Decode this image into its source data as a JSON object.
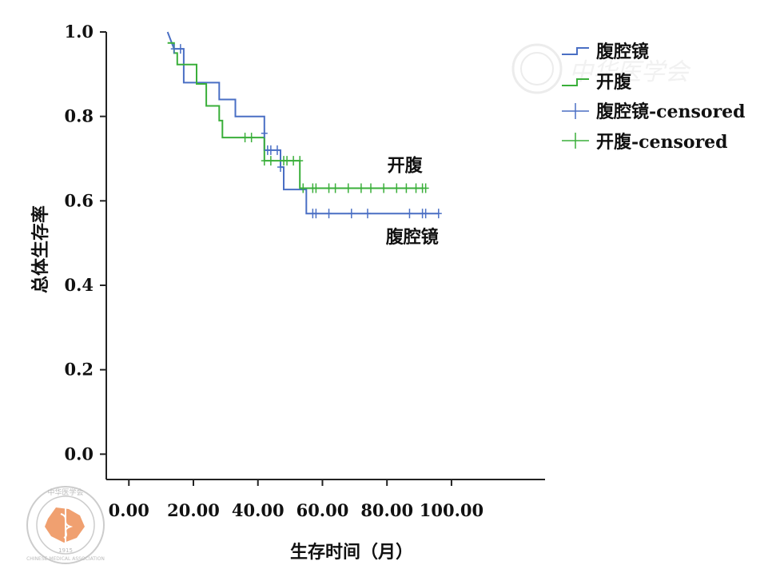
{
  "chart_data": {
    "type": "line",
    "step": true,
    "xlabel": "生存时间（月）",
    "ylabel": "总体生存率",
    "xlim": [
      -7,
      129
    ],
    "ylim": [
      -0.06,
      1.0
    ],
    "x_ticks": [
      "0.00",
      "20.00",
      "40.00",
      "60.00",
      "80.00",
      "100.00"
    ],
    "y_ticks": [
      "0.0",
      "0.2",
      "0.4",
      "0.6",
      "0.8",
      "1.0"
    ],
    "legend_position": "top-right",
    "legend": [
      "腹腔镜",
      "开腹",
      "腹腔镜-censored",
      "开腹-censored"
    ],
    "annotations": [
      {
        "text": "开腹",
        "x": 91,
        "y": 0.67
      },
      {
        "text": "腹腔镜",
        "x": 96,
        "y": 0.5
      }
    ],
    "series": [
      {
        "name": "腹腔镜",
        "color": "#4a6fc4",
        "steps": [
          [
            12,
            1.0
          ],
          [
            14,
            0.96
          ],
          [
            17,
            0.96
          ],
          [
            17,
            0.88
          ],
          [
            28,
            0.88
          ],
          [
            28,
            0.84
          ],
          [
            33,
            0.84
          ],
          [
            33,
            0.8
          ],
          [
            42,
            0.8
          ],
          [
            42,
            0.72
          ],
          [
            47,
            0.72
          ],
          [
            47,
            0.68
          ],
          [
            48,
            0.68
          ],
          [
            48,
            0.627
          ],
          [
            55,
            0.627
          ],
          [
            55,
            0.57
          ],
          [
            96,
            0.57
          ]
        ],
        "censored_x": [
          14,
          16,
          42,
          43,
          44,
          46,
          47,
          57,
          58,
          62,
          69,
          74,
          87,
          91,
          92,
          96
        ],
        "censored_y": [
          0.96,
          0.96,
          0.76,
          0.72,
          0.72,
          0.72,
          0.68,
          0.57,
          0.57,
          0.57,
          0.57,
          0.57,
          0.57,
          0.57,
          0.57,
          0.57
        ]
      },
      {
        "name": "开腹",
        "color": "#3aaf3a",
        "steps": [
          [
            12,
            0.974
          ],
          [
            14,
            0.974
          ],
          [
            14,
            0.95
          ],
          [
            15,
            0.95
          ],
          [
            15,
            0.923
          ],
          [
            21,
            0.923
          ],
          [
            21,
            0.877
          ],
          [
            24,
            0.877
          ],
          [
            24,
            0.825
          ],
          [
            28,
            0.825
          ],
          [
            28,
            0.79
          ],
          [
            29,
            0.79
          ],
          [
            29,
            0.75
          ],
          [
            42,
            0.75
          ],
          [
            42,
            0.695
          ],
          [
            53,
            0.695
          ],
          [
            53,
            0.63
          ],
          [
            91,
            0.63
          ]
        ],
        "censored_x": [
          36,
          38,
          42,
          44,
          48,
          49,
          51,
          53,
          54,
          57,
          58,
          62,
          64,
          68,
          72,
          75,
          79,
          83,
          86,
          89,
          91,
          92
        ],
        "censored_y": [
          0.75,
          0.75,
          0.695,
          0.695,
          0.695,
          0.695,
          0.695,
          0.695,
          0.63,
          0.63,
          0.63,
          0.63,
          0.63,
          0.63,
          0.63,
          0.63,
          0.63,
          0.63,
          0.63,
          0.63,
          0.63,
          0.63
        ]
      }
    ]
  },
  "colors": {
    "laparoscopic": "#4a6fc4",
    "open": "#3aaf3a",
    "axis": "#222222",
    "watermark": "#dddddd",
    "logo_map": "#f0a070"
  },
  "watermark": {
    "seal_text": "中华医学会",
    "seal_ring_text": "CHINESE MEDICAL ASSOCIATION",
    "seal_year": "1915",
    "brand_text": "中华医学会"
  }
}
